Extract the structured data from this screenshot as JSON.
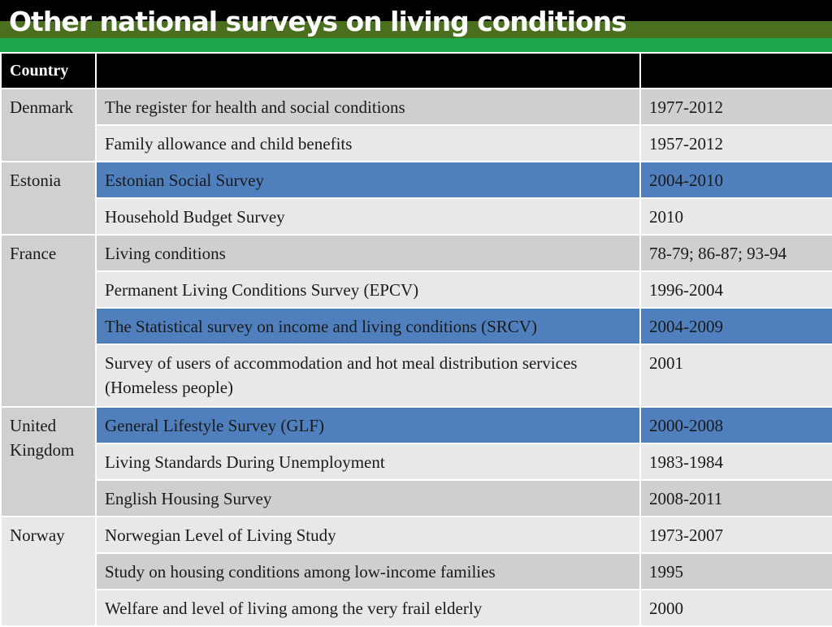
{
  "slide": {
    "title": "Other national surveys on living conditions"
  },
  "table": {
    "headers": [
      "Country",
      "",
      ""
    ],
    "groups": [
      {
        "country": "Denmark",
        "rows": [
          {
            "survey": "The register for health and social conditions",
            "period": "1977-2012",
            "highlight": false
          },
          {
            "survey": "Family allowance and child benefits",
            "period": "1957-2012",
            "highlight": false
          }
        ]
      },
      {
        "country": "Estonia",
        "rows": [
          {
            "survey": "Estonian Social Survey",
            "period": "2004-2010",
            "highlight": true
          },
          {
            "survey": "Household Budget Survey",
            "period": "2010",
            "highlight": false
          }
        ]
      },
      {
        "country": "France",
        "rows": [
          {
            "survey": "Living conditions",
            "period": "78-79; 86-87; 93-94",
            "highlight": false
          },
          {
            "survey": "Permanent Living Conditions Survey (EPCV)",
            "period": "1996-2004",
            "highlight": false
          },
          {
            "survey": "The Statistical survey on income and living conditions (SRCV)",
            "period": "2004-2009",
            "highlight": true
          },
          {
            "survey": "Survey of users of accommodation and hot meal distribution services (Homeless people)",
            "period": "2001",
            "highlight": false
          }
        ]
      },
      {
        "country": "United Kingdom",
        "rows": [
          {
            "survey": "General Lifestyle Survey (GLF)",
            "period": "2000-2008",
            "highlight": true
          },
          {
            "survey": "Living Standards During Unemployment",
            "period": "1983-1984",
            "highlight": false
          },
          {
            "survey": "English Housing Survey",
            "period": "2008-2011",
            "highlight": false
          }
        ]
      },
      {
        "country": "Norway",
        "rows": [
          {
            "survey": "Norwegian Level of Living Study",
            "period": "1973-2007",
            "highlight": false
          },
          {
            "survey": "Study on housing conditions among low-income families",
            "period": "1995",
            "highlight": false
          },
          {
            "survey": "Welfare and level of living among the very frail elderly",
            "period": "2000",
            "highlight": false
          }
        ]
      }
    ]
  },
  "colors": {
    "header_bg": "#000000",
    "title_band_green_dark": "#4a6f1f",
    "title_band_green_light": "#1fa64a",
    "highlight_row": "#4f80bd",
    "row_light": "#e8e8e8",
    "row_mid": "#cfcfcf"
  }
}
